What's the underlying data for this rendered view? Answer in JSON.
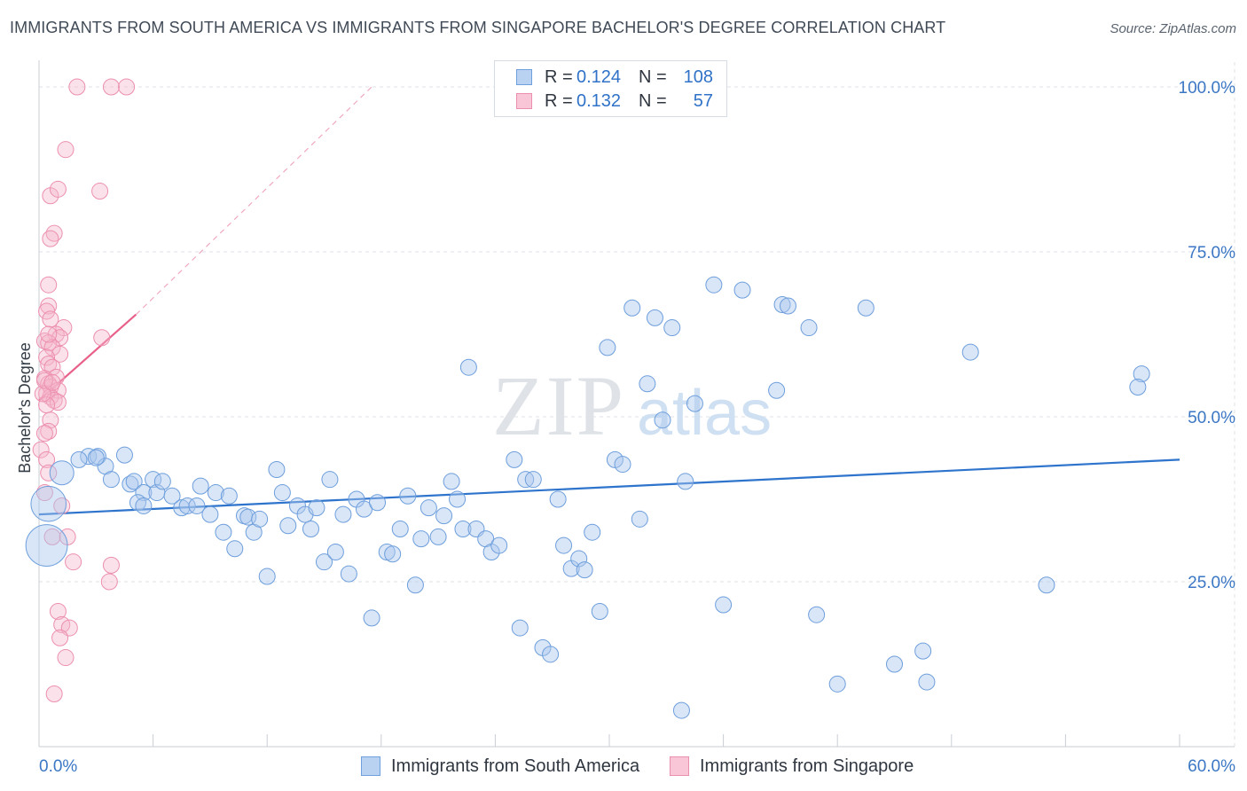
{
  "title": "IMMIGRANTS FROM SOUTH AMERICA VS IMMIGRANTS FROM SINGAPORE BACHELOR'S DEGREE CORRELATION CHART",
  "source": "Source: ZipAtlas.com",
  "watermark": {
    "zip": "ZIP",
    "atlas": "atlas"
  },
  "colors": {
    "blue": "#2e74cc",
    "blue_fill": "#aac8ee",
    "pink": "#e8608a",
    "pink_fill": "#f5b6ca",
    "tick_label": "#3b77c4",
    "grid": "#dde2e8"
  },
  "legend": [
    {
      "r_label": "R =",
      "r_value": "0.124",
      "n_label": "N =",
      "n_value": "108"
    },
    {
      "r_label": "R =",
      "r_value": "0.132",
      "n_label": "N =",
      "n_value": "57"
    }
  ],
  "chart_data": {
    "type": "scatter",
    "ylabel": "Bachelor's Degree",
    "xlim": [
      0,
      60
    ],
    "ylim": [
      0,
      105
    ],
    "x_tick_labels": [
      "0.0%",
      "60.0%"
    ],
    "y_ticks": [
      {
        "value": 25,
        "label": "25.0%"
      },
      {
        "value": 50,
        "label": "50.0%"
      },
      {
        "value": 75,
        "label": "75.0%"
      },
      {
        "value": 100,
        "label": "100.0%"
      }
    ],
    "grid": true,
    "legend_position": "top-center",
    "series": [
      {
        "name": "Immigrants from South America",
        "color": "#2e74cc",
        "trend": {
          "x": [
            0,
            60
          ],
          "y": [
            35.2,
            43.5
          ]
        },
        "points": [
          [
            0.5,
            36.8,
            2.2
          ],
          [
            0.4,
            30.5,
            2.6
          ],
          [
            1.2,
            41.5,
            1.5
          ],
          [
            2.6,
            44.0,
            1
          ],
          [
            3.1,
            44.0,
            1
          ],
          [
            3.5,
            42.5,
            1
          ],
          [
            2.1,
            43.5,
            1
          ],
          [
            3.0,
            43.8,
            1
          ],
          [
            3.8,
            40.5,
            1
          ],
          [
            4.5,
            44.2,
            1
          ],
          [
            4.8,
            39.8,
            1
          ],
          [
            5.0,
            40.2,
            1
          ],
          [
            5.5,
            38.5,
            1
          ],
          [
            5.2,
            37.0,
            1
          ],
          [
            6.0,
            40.5,
            1
          ],
          [
            6.2,
            38.5,
            1
          ],
          [
            6.5,
            40.2,
            1
          ],
          [
            7.0,
            38.0,
            1
          ],
          [
            7.5,
            36.2,
            1
          ],
          [
            7.8,
            36.5,
            1
          ],
          [
            8.3,
            36.5,
            1
          ],
          [
            8.5,
            39.5,
            1
          ],
          [
            9.0,
            35.2,
            1
          ],
          [
            9.3,
            38.5,
            1
          ],
          [
            9.7,
            32.5,
            1
          ],
          [
            10.0,
            38.0,
            1
          ],
          [
            10.3,
            30.0,
            1
          ],
          [
            10.8,
            35.0,
            1
          ],
          [
            11.0,
            34.8,
            1
          ],
          [
            11.3,
            32.5,
            1
          ],
          [
            11.6,
            34.5,
            1
          ],
          [
            12.0,
            25.8,
            1
          ],
          [
            12.5,
            42.0,
            1
          ],
          [
            12.8,
            38.5,
            1
          ],
          [
            13.1,
            33.5,
            1
          ],
          [
            13.6,
            36.5,
            1
          ],
          [
            14.0,
            35.2,
            1
          ],
          [
            14.3,
            33.0,
            1
          ],
          [
            14.6,
            36.2,
            1
          ],
          [
            15.0,
            28.0,
            1
          ],
          [
            15.3,
            40.5,
            1
          ],
          [
            15.6,
            29.5,
            1
          ],
          [
            16.0,
            35.2,
            1
          ],
          [
            16.3,
            26.2,
            1
          ],
          [
            16.7,
            37.5,
            1
          ],
          [
            17.1,
            36.0,
            1
          ],
          [
            17.5,
            19.5,
            1
          ],
          [
            17.8,
            37.0,
            1
          ],
          [
            18.3,
            29.5,
            1
          ],
          [
            18.6,
            29.2,
            1
          ],
          [
            19.0,
            33.0,
            1
          ],
          [
            19.4,
            38.0,
            1
          ],
          [
            19.8,
            24.5,
            1
          ],
          [
            20.1,
            31.5,
            1
          ],
          [
            20.5,
            36.2,
            1
          ],
          [
            21.0,
            31.8,
            1
          ],
          [
            21.3,
            35.0,
            1
          ],
          [
            21.7,
            40.2,
            1
          ],
          [
            22.0,
            37.5,
            1
          ],
          [
            22.3,
            33.0,
            1
          ],
          [
            22.6,
            57.5,
            1
          ],
          [
            23.0,
            33.0,
            1
          ],
          [
            23.5,
            31.5,
            1
          ],
          [
            23.8,
            29.5,
            1
          ],
          [
            24.2,
            30.5,
            1
          ],
          [
            25.0,
            43.5,
            1
          ],
          [
            25.3,
            18.0,
            1
          ],
          [
            25.6,
            40.5,
            1
          ],
          [
            26.0,
            40.5,
            1
          ],
          [
            26.5,
            15.0,
            1
          ],
          [
            26.9,
            14.0,
            1
          ],
          [
            27.3,
            37.5,
            1
          ],
          [
            27.6,
            30.5,
            1
          ],
          [
            28.0,
            27.0,
            1
          ],
          [
            28.4,
            28.5,
            1
          ],
          [
            28.7,
            26.8,
            1
          ],
          [
            29.1,
            32.5,
            1
          ],
          [
            29.5,
            20.5,
            1
          ],
          [
            29.9,
            60.5,
            1
          ],
          [
            30.3,
            43.5,
            1
          ],
          [
            30.7,
            42.8,
            1
          ],
          [
            31.2,
            66.5,
            1
          ],
          [
            31.6,
            34.5,
            1
          ],
          [
            32.0,
            55.0,
            1
          ],
          [
            32.4,
            65.0,
            1
          ],
          [
            32.8,
            49.5,
            1
          ],
          [
            33.3,
            63.5,
            1
          ],
          [
            33.8,
            5.5,
            1
          ],
          [
            34.0,
            40.2,
            1
          ],
          [
            34.5,
            52.0,
            1
          ],
          [
            35.5,
            70.0,
            1
          ],
          [
            36.0,
            21.5,
            1
          ],
          [
            37.0,
            69.2,
            1
          ],
          [
            38.8,
            54.0,
            1
          ],
          [
            39.1,
            67.0,
            1
          ],
          [
            39.4,
            66.8,
            1
          ],
          [
            40.5,
            63.5,
            1
          ],
          [
            40.9,
            20.0,
            1
          ],
          [
            42.0,
            9.5,
            1
          ],
          [
            43.5,
            66.5,
            1
          ],
          [
            45.0,
            12.5,
            1
          ],
          [
            46.5,
            14.5,
            1
          ],
          [
            46.7,
            9.8,
            1
          ],
          [
            49.0,
            59.8,
            1
          ],
          [
            53.0,
            24.5,
            1
          ],
          [
            58.0,
            56.5,
            1
          ],
          [
            57.8,
            54.5,
            1
          ],
          [
            5.5,
            36.5,
            1
          ]
        ]
      },
      {
        "name": "Immigrants from Singapore",
        "color": "#e8608a",
        "trend": {
          "x": [
            0,
            5.1
          ],
          "y": [
            52.5,
            65.5
          ]
        },
        "trend_dashed": {
          "x": [
            5.1,
            17.5
          ],
          "y": [
            65.5,
            100
          ]
        },
        "points": [
          [
            2.0,
            100.0,
            1
          ],
          [
            3.8,
            100.0,
            1
          ],
          [
            4.6,
            100.0,
            1
          ],
          [
            1.4,
            90.5,
            1
          ],
          [
            0.6,
            83.5,
            1
          ],
          [
            1.0,
            84.5,
            1
          ],
          [
            3.2,
            84.2,
            1
          ],
          [
            0.8,
            77.8,
            1
          ],
          [
            0.6,
            77.0,
            1
          ],
          [
            0.5,
            70.0,
            1
          ],
          [
            0.5,
            66.8,
            1
          ],
          [
            0.4,
            66.0,
            1
          ],
          [
            0.6,
            64.8,
            1
          ],
          [
            1.3,
            63.5,
            1
          ],
          [
            0.9,
            62.5,
            1
          ],
          [
            1.1,
            62.0,
            1
          ],
          [
            3.3,
            62.0,
            1
          ],
          [
            0.3,
            61.5,
            1
          ],
          [
            0.5,
            61.2,
            1
          ],
          [
            0.7,
            60.5,
            1
          ],
          [
            1.1,
            59.5,
            1
          ],
          [
            0.4,
            59.0,
            1
          ],
          [
            0.5,
            58.0,
            1
          ],
          [
            0.7,
            57.5,
            1
          ],
          [
            0.9,
            56.0,
            1
          ],
          [
            0.3,
            55.8,
            1
          ],
          [
            0.5,
            55.0,
            1
          ],
          [
            0.6,
            54.5,
            1
          ],
          [
            1.0,
            54.0,
            1
          ],
          [
            0.4,
            53.5,
            1
          ],
          [
            0.6,
            53.0,
            1
          ],
          [
            0.8,
            52.5,
            1
          ],
          [
            1.0,
            52.2,
            1
          ],
          [
            0.4,
            51.8,
            1
          ],
          [
            0.6,
            49.5,
            1
          ],
          [
            0.5,
            47.8,
            1
          ],
          [
            0.3,
            47.5,
            1
          ],
          [
            0.1,
            45.0,
            1
          ],
          [
            0.4,
            43.5,
            1
          ],
          [
            0.5,
            41.5,
            1
          ],
          [
            1.2,
            36.5,
            1
          ],
          [
            0.3,
            38.5,
            1
          ],
          [
            0.7,
            31.8,
            1
          ],
          [
            1.5,
            31.8,
            1
          ],
          [
            1.8,
            28.0,
            1
          ],
          [
            3.8,
            27.5,
            1
          ],
          [
            3.7,
            25.0,
            1
          ],
          [
            1.0,
            20.5,
            1
          ],
          [
            1.2,
            18.5,
            1
          ],
          [
            1.6,
            18.0,
            1
          ],
          [
            1.1,
            16.5,
            1
          ],
          [
            1.4,
            13.5,
            1
          ],
          [
            0.8,
            8.0,
            1
          ],
          [
            0.2,
            53.5,
            1
          ],
          [
            0.3,
            55.5,
            1
          ],
          [
            0.7,
            55.2,
            1
          ],
          [
            0.5,
            62.5,
            1
          ]
        ]
      }
    ]
  }
}
